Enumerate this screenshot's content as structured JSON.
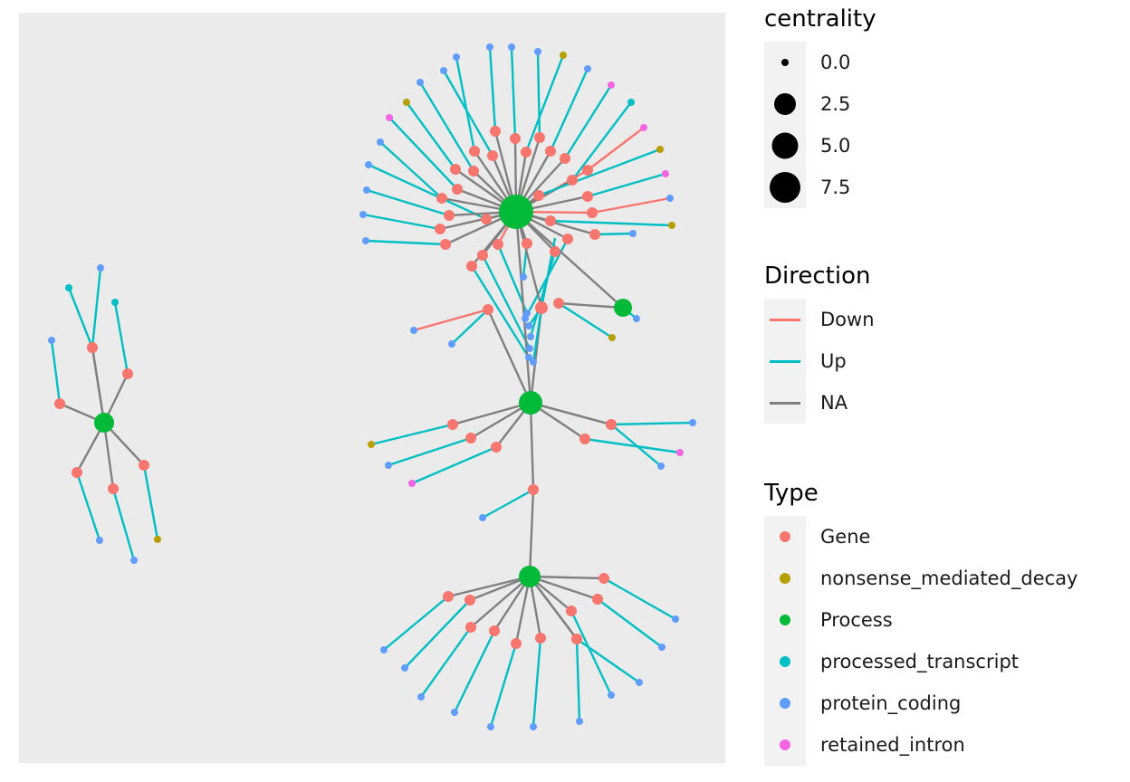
{
  "legend_centrality": {
    "title": "centrality",
    "entries": [
      {
        "label": "0.0",
        "value": 0.0
      },
      {
        "label": "2.5",
        "value": 2.5
      },
      {
        "label": "5.0",
        "value": 5.0
      },
      {
        "label": "7.5",
        "value": 7.5
      }
    ]
  },
  "legend_direction": {
    "title": "Direction",
    "entries": [
      {
        "label": "Down",
        "color": "#F8766D"
      },
      {
        "label": "Up",
        "color": "#00BFC4"
      },
      {
        "label": "NA",
        "color": "#808080"
      }
    ]
  },
  "legend_type": {
    "title": "Type",
    "entries": [
      {
        "label": "Gene",
        "color": "#F8766D"
      },
      {
        "label": "nonsense_mediated_decay",
        "color": "#B79F00"
      },
      {
        "label": "Process",
        "color": "#00BA38"
      },
      {
        "label": "processed_transcript",
        "color": "#00BFC4"
      },
      {
        "label": "protein_coding",
        "color": "#619CFF"
      },
      {
        "label": "retained_intron",
        "color": "#F564E3"
      }
    ]
  },
  "panel_background": "#EBEBEB"
}
